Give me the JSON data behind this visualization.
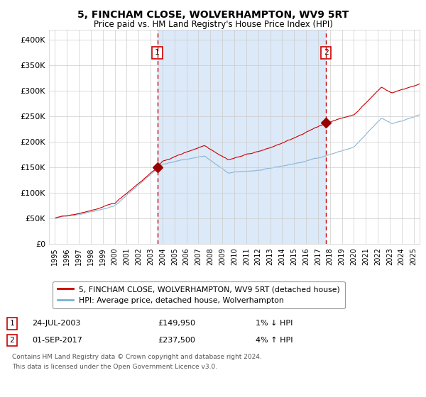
{
  "title": "5, FINCHAM CLOSE, WOLVERHAMPTON, WV9 5RT",
  "subtitle": "Price paid vs. HM Land Registry's House Price Index (HPI)",
  "background_color": "#ffffff",
  "plot_bg_color": "#ffffff",
  "shaded_bg_color": "#dce9f8",
  "grid_color": "#cccccc",
  "ylim": [
    0,
    420000
  ],
  "yticks": [
    0,
    50000,
    100000,
    150000,
    200000,
    250000,
    300000,
    350000,
    400000
  ],
  "ytick_labels": [
    "£0",
    "£50K",
    "£100K",
    "£150K",
    "£200K",
    "£250K",
    "£300K",
    "£350K",
    "£400K"
  ],
  "sale1_date_num": 2003.56,
  "sale1_price": 149950,
  "sale1_label": "1",
  "sale1_date_str": "24-JUL-2003",
  "sale1_price_str": "£149,950",
  "sale1_hpi_str": "1% ↓ HPI",
  "sale2_date_num": 2017.67,
  "sale2_price": 237500,
  "sale2_label": "2",
  "sale2_date_str": "01-SEP-2017",
  "sale2_price_str": "£237,500",
  "sale2_hpi_str": "4% ↑ HPI",
  "hpi_color": "#7bafd4",
  "price_color": "#cc0000",
  "marker_color": "#990000",
  "vline_color": "#cc0000",
  "legend_label1": "5, FINCHAM CLOSE, WOLVERHAMPTON, WV9 5RT (detached house)",
  "legend_label2": "HPI: Average price, detached house, Wolverhampton",
  "footer1": "Contains HM Land Registry data © Crown copyright and database right 2024.",
  "footer2": "This data is licensed under the Open Government Licence v3.0.",
  "xlim_start": 1994.5,
  "xlim_end": 2025.5,
  "start_year": 1995,
  "end_year": 2025
}
